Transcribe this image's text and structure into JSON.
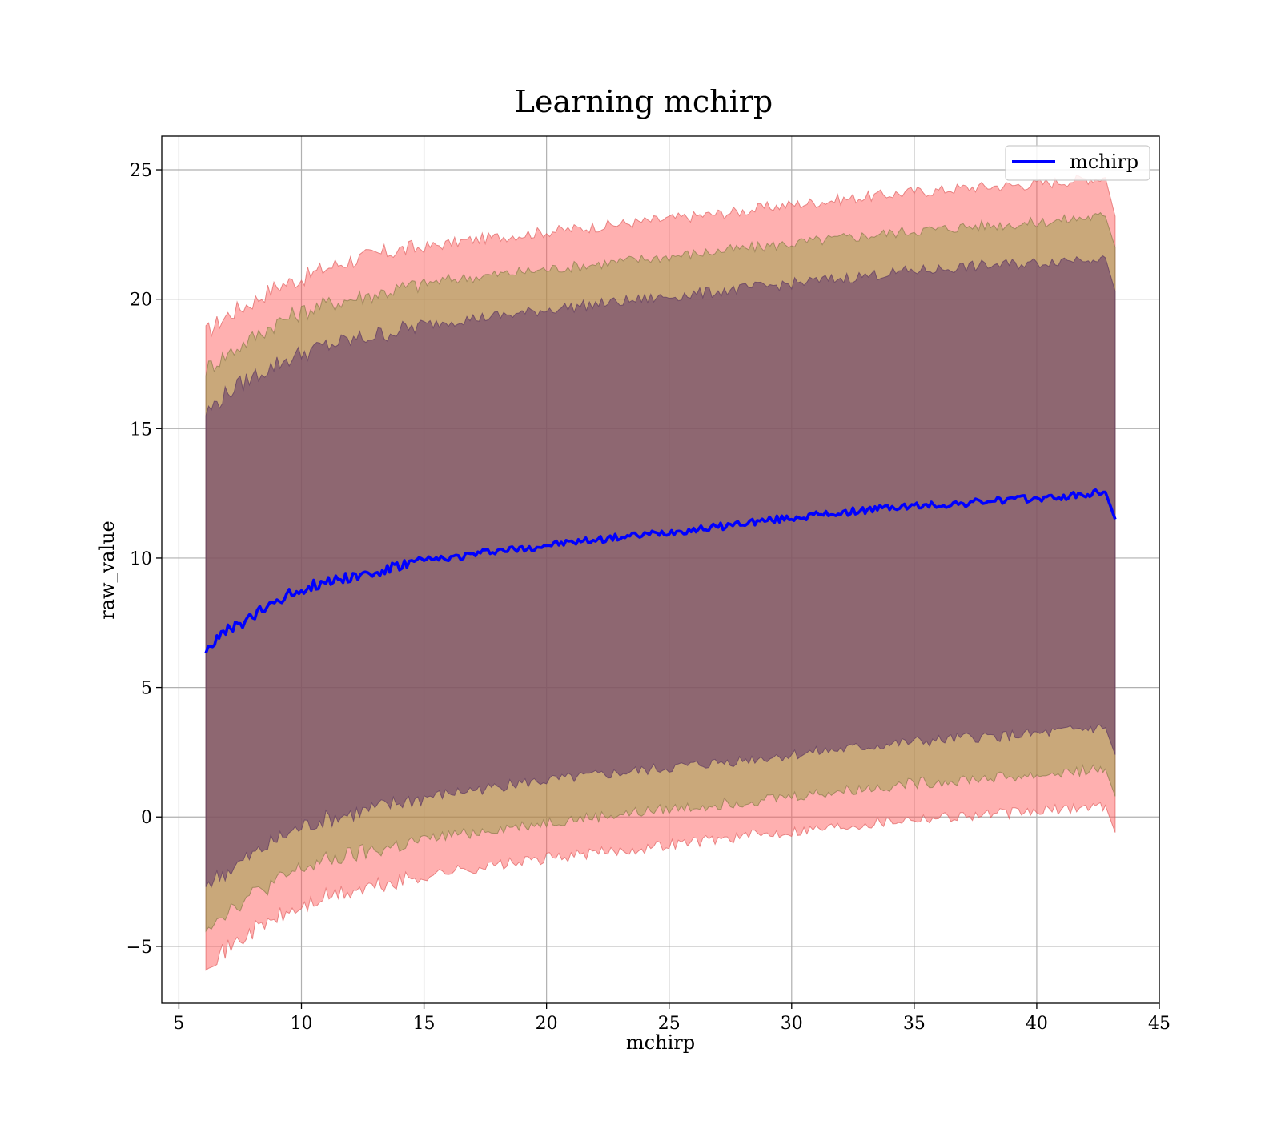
{
  "chart_data": {
    "type": "line",
    "title": "Learning mchirp",
    "xlabel": "mchirp",
    "ylabel": "raw_value",
    "xlim": [
      4.3,
      45
    ],
    "ylim": [
      -7.2,
      26.3
    ],
    "x_ticks": [
      5,
      10,
      15,
      20,
      25,
      30,
      35,
      40,
      45
    ],
    "x_tick_labels": [
      "5",
      "10",
      "15",
      "20",
      "25",
      "30",
      "35",
      "40",
      "45"
    ],
    "y_ticks": [
      -5,
      0,
      5,
      10,
      15,
      20,
      25
    ],
    "y_tick_labels": [
      "−5",
      "0",
      "5",
      "10",
      "15",
      "20",
      "25"
    ],
    "grid": true,
    "legend_position": "top-right",
    "colors": {
      "line": "#0000ff",
      "band_outer": "#ff5a5a",
      "band_middle": "#8f9f3f",
      "band_inner": "#6a3f6c"
    },
    "x": [
      6.1,
      7,
      8,
      9,
      10,
      11,
      12,
      13,
      14,
      15,
      16,
      17,
      18,
      19,
      20,
      21,
      22,
      23,
      24,
      25,
      26,
      27,
      28,
      29,
      30,
      31,
      32,
      33,
      34,
      35,
      36,
      37,
      38,
      39,
      40,
      41,
      42,
      42.8,
      43.2
    ],
    "series": [
      {
        "name": "mchirp",
        "legend": true,
        "values": [
          6.5,
          7.2,
          7.7,
          8.4,
          8.8,
          9.1,
          9.3,
          9.4,
          9.7,
          9.9,
          10.0,
          10.15,
          10.3,
          10.35,
          10.5,
          10.6,
          10.7,
          10.8,
          10.9,
          11.0,
          11.1,
          11.2,
          11.35,
          11.45,
          11.55,
          11.65,
          11.75,
          11.85,
          11.95,
          12.0,
          12.05,
          12.1,
          12.2,
          12.25,
          12.3,
          12.35,
          12.45,
          12.55,
          11.5
        ]
      }
    ],
    "bands": [
      {
        "level": "outer",
        "upper": [
          18.7,
          19.4,
          19.9,
          20.5,
          20.8,
          21.2,
          21.5,
          21.7,
          21.9,
          22.0,
          22.15,
          22.3,
          22.4,
          22.5,
          22.6,
          22.7,
          22.8,
          22.9,
          23.0,
          23.1,
          23.2,
          23.3,
          23.4,
          23.55,
          23.65,
          23.75,
          23.85,
          23.95,
          24.05,
          24.15,
          24.2,
          24.3,
          24.35,
          24.4,
          24.45,
          24.55,
          24.65,
          24.7,
          23.2
        ],
        "lower": [
          -5.6,
          -5.1,
          -4.4,
          -3.9,
          -3.5,
          -3.1,
          -2.9,
          -2.7,
          -2.5,
          -2.3,
          -2.1,
          -2.0,
          -1.85,
          -1.75,
          -1.6,
          -1.5,
          -1.4,
          -1.3,
          -1.2,
          -1.05,
          -0.95,
          -0.85,
          -0.75,
          -0.65,
          -0.55,
          -0.45,
          -0.35,
          -0.25,
          -0.15,
          -0.05,
          0.0,
          0.05,
          0.1,
          0.15,
          0.2,
          0.3,
          0.4,
          0.45,
          -0.6
        ]
      },
      {
        "level": "middle",
        "upper": [
          17.3,
          17.9,
          18.5,
          19.1,
          19.5,
          19.8,
          20.0,
          20.2,
          20.4,
          20.6,
          20.75,
          20.85,
          20.95,
          21.05,
          21.15,
          21.25,
          21.35,
          21.45,
          21.55,
          21.65,
          21.75,
          21.85,
          21.95,
          22.05,
          22.15,
          22.25,
          22.35,
          22.45,
          22.55,
          22.65,
          22.7,
          22.8,
          22.85,
          22.9,
          22.95,
          23.05,
          23.15,
          23.2,
          22.0
        ],
        "lower": [
          -4.2,
          -3.6,
          -3.0,
          -2.5,
          -2.0,
          -1.7,
          -1.5,
          -1.3,
          -1.1,
          -0.9,
          -0.7,
          -0.6,
          -0.45,
          -0.35,
          -0.2,
          -0.1,
          0.0,
          0.1,
          0.2,
          0.3,
          0.4,
          0.5,
          0.6,
          0.7,
          0.8,
          0.9,
          1.0,
          1.1,
          1.2,
          1.3,
          1.35,
          1.45,
          1.5,
          1.55,
          1.6,
          1.7,
          1.8,
          1.85,
          0.8
        ]
      },
      {
        "level": "inner",
        "upper": [
          15.6,
          16.4,
          17.0,
          17.5,
          17.9,
          18.2,
          18.4,
          18.6,
          18.8,
          19.0,
          19.15,
          19.25,
          19.35,
          19.45,
          19.6,
          19.7,
          19.8,
          19.9,
          20.0,
          20.1,
          20.2,
          20.3,
          20.4,
          20.5,
          20.6,
          20.7,
          20.8,
          20.9,
          21.0,
          21.1,
          21.15,
          21.25,
          21.3,
          21.35,
          21.4,
          21.5,
          21.6,
          21.6,
          20.3
        ],
        "lower": [
          -2.6,
          -2.1,
          -1.5,
          -0.9,
          -0.4,
          -0.1,
          0.1,
          0.3,
          0.55,
          0.75,
          0.9,
          1.05,
          1.15,
          1.3,
          1.4,
          1.5,
          1.6,
          1.7,
          1.8,
          1.9,
          2.0,
          2.1,
          2.2,
          2.3,
          2.4,
          2.5,
          2.6,
          2.7,
          2.8,
          2.9,
          2.95,
          3.05,
          3.1,
          3.15,
          3.2,
          3.3,
          3.4,
          3.45,
          2.4
        ]
      }
    ]
  }
}
